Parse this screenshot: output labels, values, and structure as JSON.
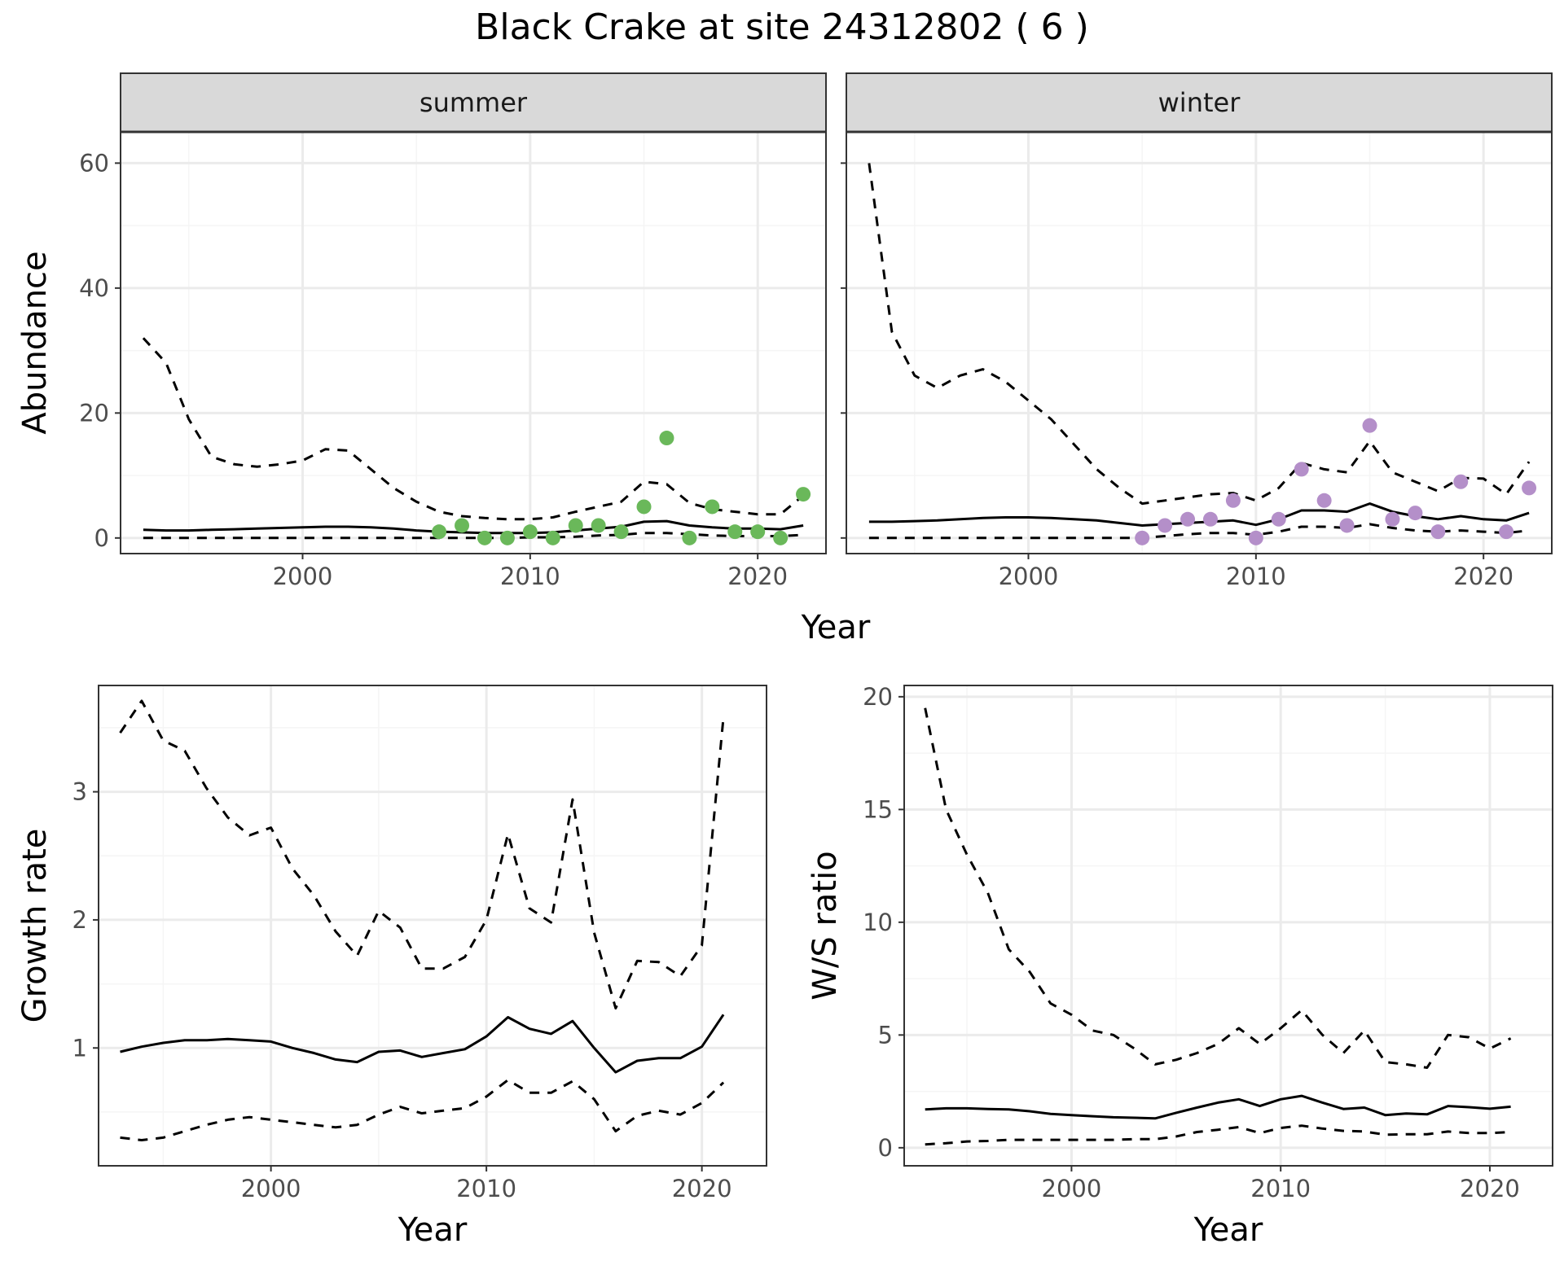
{
  "title": "Black Crake at site 24312802 ( 6 )",
  "colors": {
    "summer_points": "#6ab85a",
    "winter_points": "#b48fc9",
    "line": "#000000",
    "grid_major": "#ebebeb",
    "grid_minor": "#f5f5f5",
    "strip_fill": "#d9d9d9"
  },
  "chart_data": [
    {
      "type": "line",
      "facet": "summer",
      "xlabel": "Year",
      "ylabel": "Abundance",
      "xlim": [
        1992,
        2023
      ],
      "ylim": [
        -2.5,
        65
      ],
      "x_ticks": [
        2000,
        2010,
        2020
      ],
      "y_ticks": [
        0,
        20,
        40,
        60
      ],
      "grid": true,
      "series": [
        {
          "style": "solid",
          "x": [
            1993,
            1994,
            1995,
            1996,
            1997,
            1998,
            1999,
            2000,
            2001,
            2002,
            2003,
            2004,
            2005,
            2006,
            2007,
            2008,
            2009,
            2010,
            2011,
            2012,
            2013,
            2014,
            2015,
            2016,
            2017,
            2018,
            2019,
            2020,
            2021,
            2022
          ],
          "y": [
            1.3,
            1.2,
            1.2,
            1.3,
            1.4,
            1.5,
            1.6,
            1.7,
            1.8,
            1.8,
            1.7,
            1.5,
            1.2,
            1.0,
            0.9,
            0.8,
            0.8,
            0.8,
            0.9,
            1.2,
            1.5,
            1.8,
            2.6,
            2.7,
            2.0,
            1.7,
            1.5,
            1.5,
            1.4,
            2.0
          ]
        },
        {
          "style": "dashed",
          "x": [
            1993,
            1994,
            1995,
            1996,
            1997,
            1998,
            1999,
            2000,
            2001,
            2002,
            2003,
            2004,
            2005,
            2006,
            2007,
            2008,
            2009,
            2010,
            2011,
            2012,
            2013,
            2014,
            2015,
            2016,
            2017,
            2018,
            2019,
            2020,
            2021,
            2022
          ],
          "y": [
            32,
            28,
            19,
            13,
            11.8,
            11.4,
            11.8,
            12.4,
            14.2,
            14.0,
            11.0,
            8.0,
            5.8,
            4.2,
            3.5,
            3.2,
            3.0,
            3.0,
            3.3,
            4.2,
            5.0,
            5.8,
            9.0,
            8.6,
            5.6,
            4.6,
            4.2,
            3.8,
            3.8,
            6.8
          ]
        },
        {
          "style": "dashed",
          "x": [
            1993,
            1994,
            1995,
            1996,
            1997,
            1998,
            1999,
            2000,
            2001,
            2002,
            2003,
            2004,
            2005,
            2006,
            2007,
            2008,
            2009,
            2010,
            2011,
            2012,
            2013,
            2014,
            2015,
            2016,
            2017,
            2018,
            2019,
            2020,
            2021,
            2022
          ],
          "y": [
            0,
            0,
            0,
            0,
            0,
            0,
            0,
            0,
            0,
            0,
            0,
            0,
            0,
            0,
            0,
            0,
            0,
            0.1,
            0.1,
            0.2,
            0.4,
            0.5,
            0.8,
            0.8,
            0.6,
            0.4,
            0.3,
            0.3,
            0.3,
            0.5
          ]
        }
      ],
      "points": {
        "x": [
          2006,
          2007,
          2008,
          2009,
          2010,
          2011,
          2012,
          2013,
          2014,
          2015,
          2016,
          2017,
          2018,
          2019,
          2020,
          2021,
          2022
        ],
        "y": [
          1,
          2,
          0,
          0,
          1,
          0,
          2,
          2,
          1,
          5,
          16,
          0,
          5,
          1,
          1,
          0,
          7
        ]
      }
    },
    {
      "type": "line",
      "facet": "winter",
      "xlabel": "Year",
      "xlim": [
        1992,
        2023
      ],
      "ylim": [
        -2.5,
        65
      ],
      "x_ticks": [
        2000,
        2010,
        2020
      ],
      "grid": true,
      "series": [
        {
          "style": "solid",
          "x": [
            1993,
            1994,
            1995,
            1996,
            1997,
            1998,
            1999,
            2000,
            2001,
            2002,
            2003,
            2004,
            2005,
            2006,
            2007,
            2008,
            2009,
            2010,
            2011,
            2012,
            2013,
            2014,
            2015,
            2016,
            2017,
            2018,
            2019,
            2020,
            2021,
            2022
          ],
          "y": [
            2.6,
            2.6,
            2.7,
            2.8,
            3.0,
            3.2,
            3.3,
            3.3,
            3.2,
            3.0,
            2.8,
            2.4,
            2.0,
            2.2,
            2.4,
            2.6,
            2.8,
            2.1,
            3.0,
            4.4,
            4.4,
            4.2,
            5.5,
            4.2,
            3.5,
            3.0,
            3.5,
            3.0,
            2.8,
            4.0
          ]
        },
        {
          "style": "dashed",
          "x": [
            1993,
            1994,
            1995,
            1996,
            1997,
            1998,
            1999,
            2000,
            2001,
            2002,
            2003,
            2004,
            2005,
            2006,
            2007,
            2008,
            2009,
            2010,
            2011,
            2012,
            2013,
            2014,
            2015,
            2016,
            2017,
            2018,
            2019,
            2020,
            2021,
            2022
          ],
          "y": [
            60,
            33,
            26,
            24,
            26,
            27,
            25,
            22,
            19,
            15,
            11,
            8,
            5.5,
            6.0,
            6.5,
            7.0,
            7.2,
            6.0,
            8.0,
            12,
            11,
            10.5,
            15.5,
            10.5,
            9.0,
            7.5,
            9.6,
            9.5,
            7.0,
            12.2
          ]
        },
        {
          "style": "dashed",
          "x": [
            1993,
            1994,
            1995,
            1996,
            1997,
            1998,
            1999,
            2000,
            2001,
            2002,
            2003,
            2004,
            2005,
            2006,
            2007,
            2008,
            2009,
            2010,
            2011,
            2012,
            2013,
            2014,
            2015,
            2016,
            2017,
            2018,
            2019,
            2020,
            2021,
            2022
          ],
          "y": [
            0,
            0,
            0,
            0,
            0,
            0,
            0,
            0,
            0,
            0,
            0,
            0,
            0,
            0.3,
            0.6,
            0.8,
            0.8,
            0.5,
            1.0,
            1.8,
            1.8,
            1.6,
            2.2,
            1.6,
            1.2,
            1.0,
            1.2,
            1.0,
            0.8,
            1.2
          ]
        }
      ],
      "points": {
        "x": [
          2005,
          2006,
          2007,
          2008,
          2009,
          2010,
          2011,
          2012,
          2013,
          2014,
          2015,
          2016,
          2017,
          2018,
          2019,
          2021,
          2022
        ],
        "y": [
          0,
          2,
          3,
          3,
          6,
          0,
          3,
          11,
          6,
          2,
          18,
          3,
          4,
          1,
          9,
          1,
          8
        ]
      }
    },
    {
      "type": "line",
      "xlabel": "Year",
      "ylabel": "Growth rate",
      "xlim": [
        1992,
        2023
      ],
      "ylim": [
        0.08,
        3.83
      ],
      "x_ticks": [
        2000,
        2010,
        2020
      ],
      "y_ticks": [
        1,
        2,
        3
      ],
      "grid": true,
      "series": [
        {
          "style": "solid",
          "x": [
            1993,
            1994,
            1995,
            1996,
            1997,
            1998,
            1999,
            2000,
            2001,
            2002,
            2003,
            2004,
            2005,
            2006,
            2007,
            2008,
            2009,
            2010,
            2011,
            2012,
            2013,
            2014,
            2015,
            2016,
            2017,
            2018,
            2019,
            2020,
            2021
          ],
          "y": [
            0.97,
            1.01,
            1.04,
            1.06,
            1.06,
            1.07,
            1.06,
            1.05,
            1.0,
            0.96,
            0.91,
            0.89,
            0.97,
            0.98,
            0.93,
            0.96,
            0.99,
            1.09,
            1.24,
            1.15,
            1.11,
            1.21,
            1.0,
            0.81,
            0.9,
            0.92,
            0.92,
            1.01,
            1.26
          ]
        },
        {
          "style": "dashed",
          "x": [
            1993,
            1994,
            1995,
            1996,
            1997,
            1998,
            1999,
            2000,
            2001,
            2002,
            2003,
            2004,
            2005,
            2006,
            2007,
            2008,
            2009,
            2010,
            2011,
            2012,
            2013,
            2014,
            2015,
            2016,
            2017,
            2018,
            2019,
            2020,
            2021
          ],
          "y": [
            3.46,
            3.71,
            3.4,
            3.32,
            3.03,
            2.8,
            2.66,
            2.72,
            2.4,
            2.19,
            1.91,
            1.72,
            2.07,
            1.94,
            1.62,
            1.62,
            1.71,
            2.0,
            2.67,
            2.09,
            1.98,
            2.94,
            1.9,
            1.31,
            1.68,
            1.67,
            1.56,
            1.8,
            3.58
          ]
        },
        {
          "style": "dashed",
          "x": [
            1993,
            1994,
            1995,
            1996,
            1997,
            1998,
            1999,
            2000,
            2001,
            2002,
            2003,
            2004,
            2005,
            2006,
            2007,
            2008,
            2009,
            2010,
            2011,
            2012,
            2013,
            2014,
            2015,
            2016,
            2017,
            2018,
            2019,
            2020,
            2021
          ],
          "y": [
            0.3,
            0.28,
            0.3,
            0.35,
            0.4,
            0.44,
            0.46,
            0.44,
            0.42,
            0.4,
            0.38,
            0.4,
            0.48,
            0.54,
            0.49,
            0.51,
            0.53,
            0.62,
            0.75,
            0.65,
            0.65,
            0.74,
            0.6,
            0.35,
            0.47,
            0.51,
            0.48,
            0.57,
            0.73
          ]
        }
      ]
    },
    {
      "type": "line",
      "xlabel": "Year",
      "ylabel": "W/S ratio",
      "xlim": [
        1992,
        2023
      ],
      "ylim": [
        -0.8,
        20.5
      ],
      "x_ticks": [
        2000,
        2010,
        2020
      ],
      "y_ticks": [
        0,
        5,
        10,
        15,
        20
      ],
      "grid": true,
      "series": [
        {
          "style": "solid",
          "x": [
            1993,
            1994,
            1995,
            1996,
            1997,
            1998,
            1999,
            2000,
            2001,
            2002,
            2003,
            2004,
            2005,
            2006,
            2007,
            2008,
            2009,
            2010,
            2011,
            2012,
            2013,
            2014,
            2015,
            2016,
            2017,
            2018,
            2019,
            2020,
            2021
          ],
          "y": [
            1.7,
            1.75,
            1.75,
            1.72,
            1.7,
            1.62,
            1.5,
            1.45,
            1.4,
            1.35,
            1.33,
            1.3,
            1.55,
            1.78,
            2.0,
            2.15,
            1.85,
            2.15,
            2.3,
            2.0,
            1.72,
            1.78,
            1.45,
            1.52,
            1.48,
            1.85,
            1.8,
            1.73,
            1.82
          ]
        },
        {
          "style": "dashed",
          "x": [
            1993,
            1994,
            1995,
            1996,
            1997,
            1998,
            1999,
            2000,
            2001,
            2002,
            2003,
            2004,
            2005,
            2006,
            2007,
            2008,
            2009,
            2010,
            2011,
            2012,
            2013,
            2014,
            2015,
            2016,
            2017,
            2018,
            2019,
            2020,
            2021
          ],
          "y": [
            19.5,
            15.0,
            13.0,
            11.3,
            8.8,
            7.8,
            6.4,
            5.9,
            5.2,
            5.0,
            4.4,
            3.7,
            3.9,
            4.2,
            4.6,
            5.3,
            4.6,
            5.3,
            6.1,
            5.0,
            4.2,
            5.2,
            3.8,
            3.7,
            3.55,
            5.0,
            4.9,
            4.4,
            4.85
          ]
        },
        {
          "style": "dashed",
          "x": [
            1993,
            1994,
            1995,
            1996,
            1997,
            1998,
            1999,
            2000,
            2001,
            2002,
            2003,
            2004,
            2005,
            2006,
            2007,
            2008,
            2009,
            2010,
            2011,
            2012,
            2013,
            2014,
            2015,
            2016,
            2017,
            2018,
            2019,
            2020,
            2021
          ],
          "y": [
            0.15,
            0.2,
            0.28,
            0.3,
            0.35,
            0.35,
            0.35,
            0.35,
            0.35,
            0.35,
            0.38,
            0.38,
            0.5,
            0.7,
            0.8,
            0.92,
            0.65,
            0.88,
            0.98,
            0.85,
            0.75,
            0.72,
            0.58,
            0.6,
            0.6,
            0.72,
            0.65,
            0.65,
            0.7
          ]
        }
      ]
    }
  ]
}
